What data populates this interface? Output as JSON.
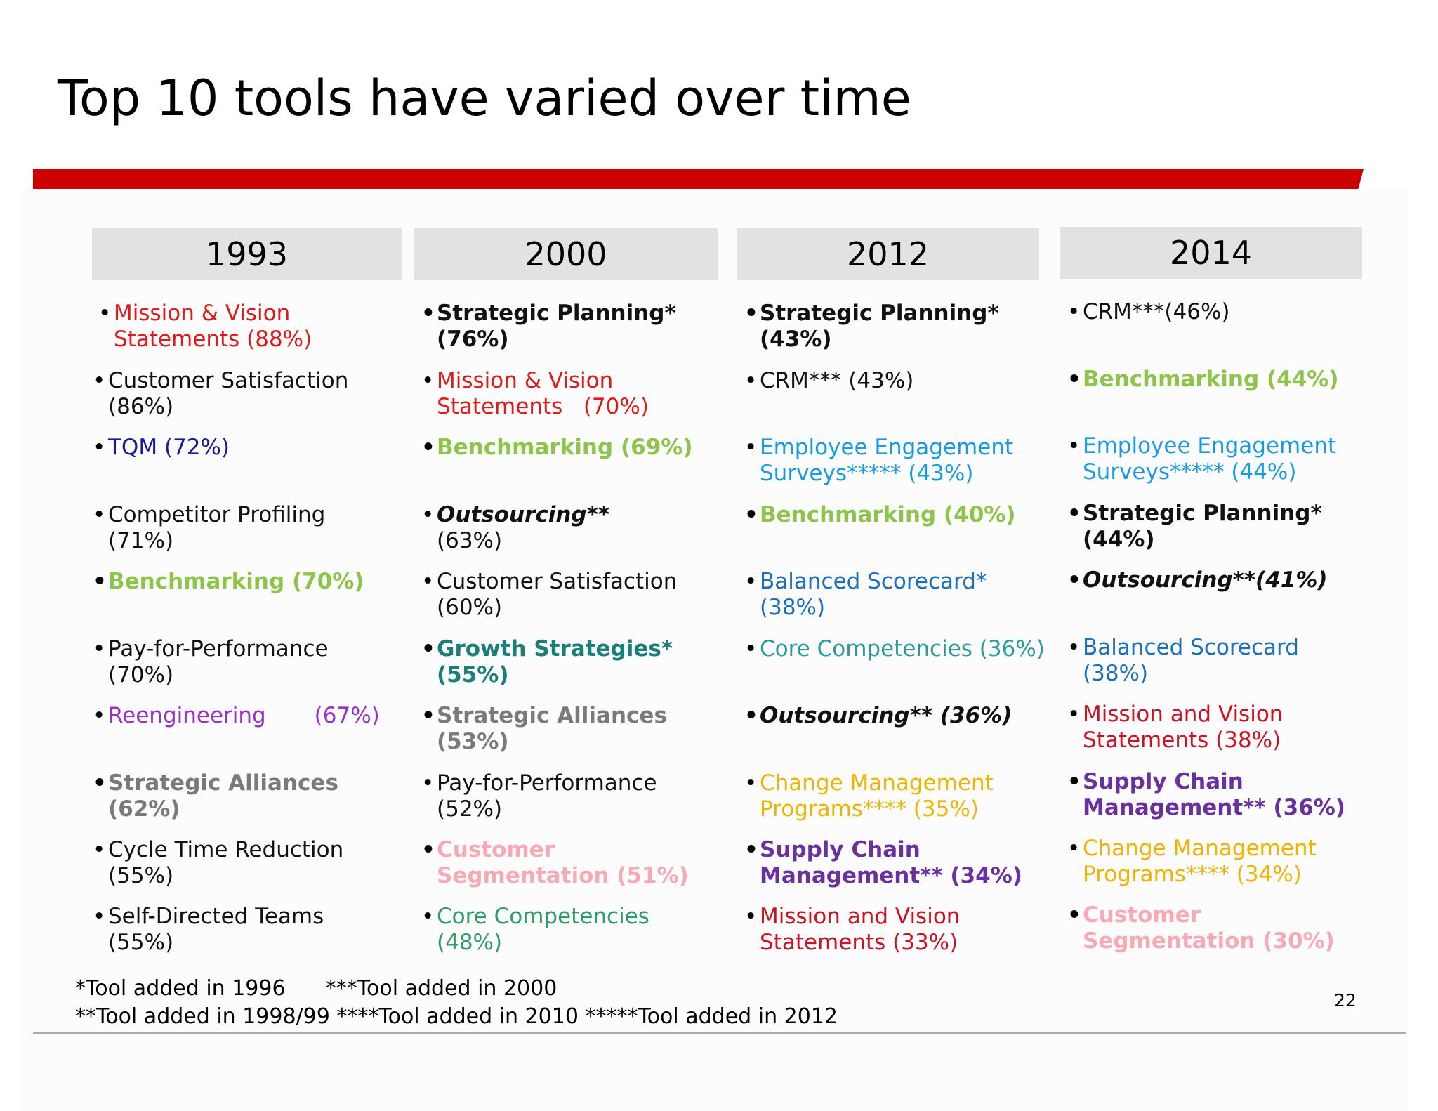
{
  "title": "Top 10 tools have varied over time",
  "accent_color": "#cc0000",
  "columns": [
    {
      "year": "1993",
      "items": [
        {
          "line1": "Mission & Vision",
          "line2": "Statements (88%)",
          "color": "#e01a1a"
        },
        {
          "line1": "Customer Satisfaction",
          "line2": "(86%)",
          "color": "#111111"
        },
        {
          "line1": "TQM (72%)",
          "line2": "",
          "color": "#1a1a99"
        },
        {
          "line1": "Competitor Profiling",
          "line2": "(71%)",
          "color": "#111111"
        },
        {
          "line1": "Benchmarking (70%)",
          "line2": "",
          "color": "#8dc44a",
          "bold": true
        },
        {
          "line1": "Pay-for-Performance",
          "line2": "(70%)",
          "color": "#111111"
        },
        {
          "line1": "Reengineering       (67%)",
          "line2": "",
          "color": "#9a2fc7"
        },
        {
          "line1": "Strategic Alliances",
          "line2": "(62%)",
          "color": "#7a7a7a",
          "bold": true
        },
        {
          "line1": "Cycle Time Reduction",
          "line2": "(55%)",
          "color": "#111111"
        },
        {
          "line1": "Self-Directed Teams",
          "line2": "(55%)",
          "color": "#111111"
        }
      ]
    },
    {
      "year": "2000",
      "items": [
        {
          "line1": "Strategic Planning*",
          "line2": "(76%)",
          "color": "#111111",
          "bold": true
        },
        {
          "line1": "Mission & Vision",
          "line2": "Statements   (70%)",
          "color": "#e01a1a"
        },
        {
          "line1": "Benchmarking (69%)",
          "line2": "",
          "color": "#8dc44a",
          "bold": true
        },
        {
          "line1": "Outsourcing**",
          "line2": "(63%)",
          "color": "#111111"
        },
        {
          "line1": "Customer Satisfaction",
          "line2": "(60%)",
          "color": "#111111"
        },
        {
          "line1": "Growth Strategies*",
          "line2": "(55%)",
          "color": "#1a7f78",
          "bold": true
        },
        {
          "line1": "Strategic Alliances",
          "line2": "(53%)",
          "color": "#7a7a7a",
          "bold": true
        },
        {
          "line1": "Pay-for-Performance",
          "line2": "(52%)",
          "color": "#111111"
        },
        {
          "line1": "Customer",
          "line2": "Segmentation (51%)",
          "color": "#f7aab5",
          "bold": true
        },
        {
          "line1": "Core Competencies",
          "line2": "(48%)",
          "color": "#2e9e66"
        }
      ]
    },
    {
      "year": "2012",
      "items": [
        {
          "line1": "Strategic Planning*",
          "line2": "(43%)",
          "color": "#111111",
          "bold": true
        },
        {
          "line1": "CRM*** (43%)",
          "line2": "",
          "color": "#111111"
        },
        {
          "line1": "Employee Engagement",
          "line2": "Surveys***** (43%)",
          "color": "#1a9be0"
        },
        {
          "line1": "Benchmarking (40%)",
          "line2": "",
          "color": "#8dc44a",
          "bold": true
        },
        {
          "line1": "Balanced Scorecard*",
          "line2": "(38%)",
          "color": "#1a6fbf"
        },
        {
          "line1": "Core Competencies (36%)",
          "line2": "",
          "color": "#2a9a9a"
        },
        {
          "line1": "Outsourcing** (36%)",
          "line2": "",
          "color": "#111111",
          "bolditalic": true
        },
        {
          "line1": "Change Management",
          "line2": "Programs**** (35%)",
          "color": "#f0b400"
        },
        {
          "line1": "Supply Chain",
          "line2": "Management** (34%)",
          "color": "#6a2fa0",
          "bold": true
        },
        {
          "line1": "Mission and Vision",
          "line2": "Statements (33%)",
          "color": "#cc1122"
        }
      ]
    },
    {
      "year": "2014",
      "items": [
        {
          "line1": "CRM***(46%)",
          "line2": "",
          "color": "#111111"
        },
        {
          "line1": "Benchmarking (44%)",
          "line2": "",
          "color": "#8dc44a",
          "bold": true
        },
        {
          "line1": "Employee Engagement",
          "line2": "Surveys***** (44%)",
          "color": "#1a9be0"
        },
        {
          "line1": "Strategic Planning*",
          "line2": "(44%)",
          "color": "#111111",
          "bold": true
        },
        {
          "line1": "Outsourcing**(41%)",
          "line2": "",
          "color": "#111111",
          "bolditalic": true
        },
        {
          "line1": "Balanced Scorecard",
          "line2": "(38%)",
          "color": "#1a6fbf"
        },
        {
          "line1": "Mission and Vision",
          "line2": "Statements (38%)",
          "color": "#cc1122"
        },
        {
          "line1": "Supply Chain",
          "line2": "Management** (36%)",
          "color": "#6a2fa0",
          "bold": true
        },
        {
          "line1": "Change Management",
          "line2": "Programs**** (34%)",
          "color": "#f0b400"
        },
        {
          "line1": "Customer",
          "line2": "Segmentation (30%)",
          "color": "#f7aab5",
          "bold": true
        }
      ]
    }
  ],
  "footnotes": {
    "line1": "*Tool added in 1996      ***Tool added in 2000",
    "line2": "**Tool added in 1998/99 ****Tool added in 2010 *****Tool added in 2012"
  },
  "page_number": "22"
}
